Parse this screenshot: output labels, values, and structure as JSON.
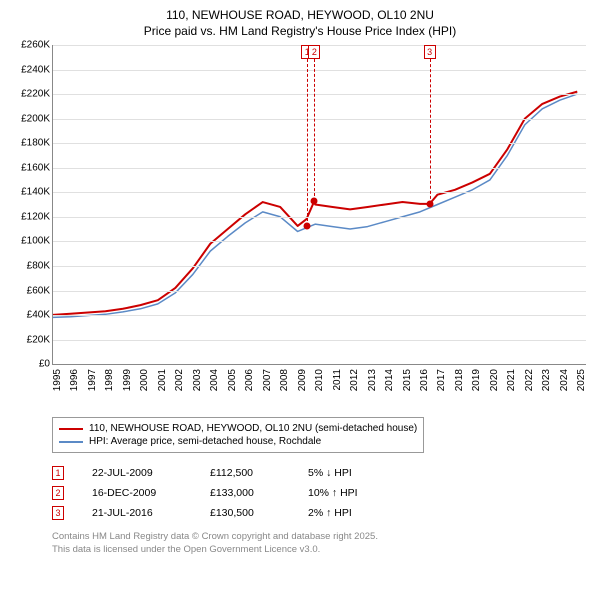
{
  "title_line1": "110, NEWHOUSE ROAD, HEYWOOD, OL10 2NU",
  "title_line2": "Price paid vs. HM Land Registry's House Price Index (HPI)",
  "chart": {
    "type": "line",
    "ylim": [
      0,
      260000
    ],
    "ytick_step": 20000,
    "y_ticks": [
      "£0",
      "£20K",
      "£40K",
      "£60K",
      "£80K",
      "£100K",
      "£120K",
      "£140K",
      "£160K",
      "£180K",
      "£200K",
      "£220K",
      "£240K",
      "£260K"
    ],
    "x_ticks": [
      "1995",
      "1996",
      "1997",
      "1998",
      "1999",
      "2000",
      "2001",
      "2002",
      "2003",
      "2004",
      "2005",
      "2006",
      "2007",
      "2008",
      "2009",
      "2010",
      "2011",
      "2012",
      "2013",
      "2014",
      "2015",
      "2016",
      "2017",
      "2018",
      "2019",
      "2020",
      "2021",
      "2022",
      "2023",
      "2024",
      "2025"
    ],
    "xlim": [
      1995,
      2025.5
    ],
    "background_color": "#ffffff",
    "grid_color": "#e0e0e0",
    "series": [
      {
        "name": "110, NEWHOUSE ROAD, HEYWOOD, OL10 2NU (semi-detached house)",
        "color": "#cc0000",
        "width": 2,
        "data": [
          [
            1995,
            40000
          ],
          [
            1996,
            41000
          ],
          [
            1997,
            42000
          ],
          [
            1998,
            43000
          ],
          [
            1999,
            45000
          ],
          [
            2000,
            48000
          ],
          [
            2001,
            52000
          ],
          [
            2002,
            62000
          ],
          [
            2003,
            78000
          ],
          [
            2004,
            98000
          ],
          [
            2005,
            110000
          ],
          [
            2006,
            122000
          ],
          [
            2007,
            132000
          ],
          [
            2008,
            128000
          ],
          [
            2009,
            112500
          ],
          [
            2009.5,
            118000
          ],
          [
            2009.96,
            133000
          ],
          [
            2010,
            130000
          ],
          [
            2011,
            128000
          ],
          [
            2012,
            126000
          ],
          [
            2013,
            128000
          ],
          [
            2014,
            130000
          ],
          [
            2015,
            132000
          ],
          [
            2016,
            130500
          ],
          [
            2016.55,
            130500
          ],
          [
            2017,
            138000
          ],
          [
            2018,
            142000
          ],
          [
            2019,
            148000
          ],
          [
            2020,
            155000
          ],
          [
            2021,
            175000
          ],
          [
            2022,
            200000
          ],
          [
            2023,
            212000
          ],
          [
            2024,
            218000
          ],
          [
            2025,
            222000
          ]
        ]
      },
      {
        "name": "HPI: Average price, semi-detached house, Rochdale",
        "color": "#5b8ac6",
        "width": 1.5,
        "data": [
          [
            1995,
            38000
          ],
          [
            1996,
            38500
          ],
          [
            1997,
            39500
          ],
          [
            1998,
            40500
          ],
          [
            1999,
            42500
          ],
          [
            2000,
            45000
          ],
          [
            2001,
            49000
          ],
          [
            2002,
            58000
          ],
          [
            2003,
            73000
          ],
          [
            2004,
            92000
          ],
          [
            2005,
            104000
          ],
          [
            2006,
            115000
          ],
          [
            2007,
            124000
          ],
          [
            2008,
            120000
          ],
          [
            2009,
            108000
          ],
          [
            2010,
            114000
          ],
          [
            2011,
            112000
          ],
          [
            2012,
            110000
          ],
          [
            2013,
            112000
          ],
          [
            2014,
            116000
          ],
          [
            2015,
            120000
          ],
          [
            2016,
            124000
          ],
          [
            2017,
            130000
          ],
          [
            2018,
            136000
          ],
          [
            2019,
            142000
          ],
          [
            2020,
            150000
          ],
          [
            2021,
            170000
          ],
          [
            2022,
            195000
          ],
          [
            2023,
            208000
          ],
          [
            2024,
            215000
          ],
          [
            2025,
            220000
          ]
        ]
      }
    ],
    "markers": [
      {
        "n": "1",
        "x": 2009.55,
        "y": 112500,
        "color": "#cc0000"
      },
      {
        "n": "2",
        "x": 2009.96,
        "y": 133000,
        "color": "#cc0000"
      },
      {
        "n": "3",
        "x": 2016.55,
        "y": 130500,
        "color": "#cc0000"
      }
    ]
  },
  "legend": [
    {
      "label": "110, NEWHOUSE ROAD, HEYWOOD, OL10 2NU (semi-detached house)",
      "color": "#cc0000"
    },
    {
      "label": "HPI: Average price, semi-detached house, Rochdale",
      "color": "#5b8ac6"
    }
  ],
  "transactions": [
    {
      "n": "1",
      "date": "22-JUL-2009",
      "price": "£112,500",
      "delta": "5% ↓ HPI",
      "color": "#cc0000"
    },
    {
      "n": "2",
      "date": "16-DEC-2009",
      "price": "£133,000",
      "delta": "10% ↑ HPI",
      "color": "#cc0000"
    },
    {
      "n": "3",
      "date": "21-JUL-2016",
      "price": "£130,500",
      "delta": "2% ↑ HPI",
      "color": "#cc0000"
    }
  ],
  "footer_line1": "Contains HM Land Registry data © Crown copyright and database right 2025.",
  "footer_line2": "This data is licensed under the Open Government Licence v3.0."
}
